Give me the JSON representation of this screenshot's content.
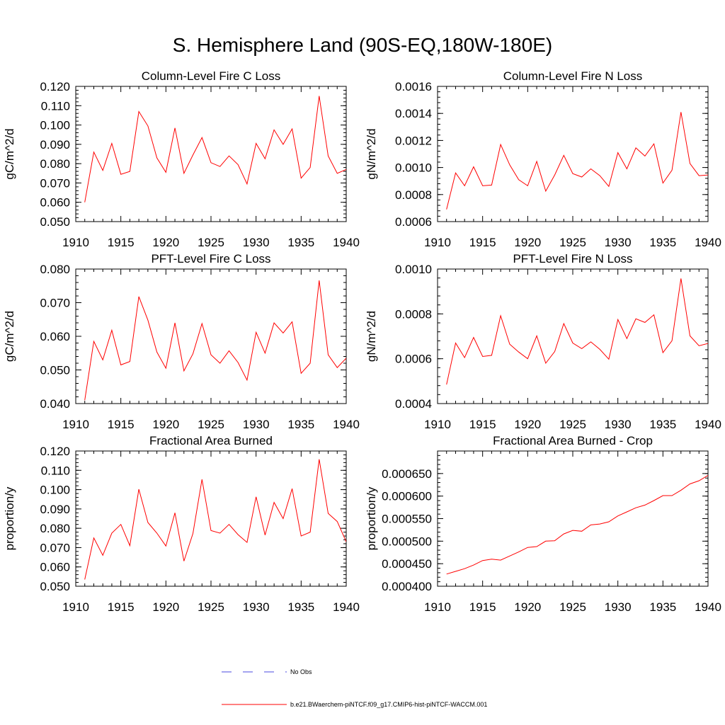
{
  "page": {
    "title": "S. Hemisphere Land (90S-EQ,180W-180E)"
  },
  "legend": {
    "obs_label": "No Obs",
    "model_label": "b.e21.BWaerchem-piNTCF.f09_g17.CMIP6-hist-piNTCF-WACCM.001",
    "obs_color": "#4a4ae0",
    "model_color": "#ff0000"
  },
  "chart_data": [
    {
      "type": "line",
      "title": "Column-Level Fire C Loss",
      "ylabel": "gC/m^2/d",
      "xlim": [
        1910,
        1940
      ],
      "ylim": [
        0.05,
        0.12
      ],
      "xticks": [
        "1910",
        "1915",
        "1920",
        "1925",
        "1930",
        "1935",
        "1940"
      ],
      "yticks": [
        "0.050",
        "0.060",
        "0.070",
        "0.080",
        "0.090",
        "0.100",
        "0.110",
        "0.120"
      ],
      "x": [
        1911,
        1912,
        1913,
        1914,
        1915,
        1916,
        1917,
        1918,
        1919,
        1920,
        1921,
        1922,
        1923,
        1924,
        1925,
        1926,
        1927,
        1928,
        1929,
        1930,
        1931,
        1932,
        1933,
        1934,
        1935,
        1936,
        1937,
        1938,
        1939,
        1940
      ],
      "values": [
        0.06,
        0.086,
        0.0765,
        0.0905,
        0.0745,
        0.076,
        0.107,
        0.0995,
        0.083,
        0.0755,
        0.0985,
        0.075,
        0.0845,
        0.0935,
        0.0805,
        0.0785,
        0.084,
        0.0795,
        0.0695,
        0.0905,
        0.0825,
        0.0975,
        0.09,
        0.098,
        0.0725,
        0.078,
        0.115,
        0.084,
        0.075,
        0.077
      ],
      "color": "#ff0000"
    },
    {
      "type": "line",
      "title": "Column-Level Fire N Loss",
      "ylabel": "gN/m^2/d",
      "xlim": [
        1910,
        1940
      ],
      "ylim": [
        0.0006,
        0.0016
      ],
      "xticks": [
        "1910",
        "1915",
        "1920",
        "1925",
        "1930",
        "1935",
        "1940"
      ],
      "yticks": [
        "0.0006",
        "0.0008",
        "0.0010",
        "0.0012",
        "0.0014",
        "0.0016"
      ],
      "x": [
        1911,
        1912,
        1913,
        1914,
        1915,
        1916,
        1917,
        1918,
        1919,
        1920,
        1921,
        1922,
        1923,
        1924,
        1925,
        1926,
        1927,
        1928,
        1929,
        1930,
        1931,
        1932,
        1933,
        1934,
        1935,
        1936,
        1937,
        1938,
        1939,
        1940
      ],
      "values": [
        0.00069,
        0.00096,
        0.000865,
        0.001005,
        0.000865,
        0.00087,
        0.00117,
        0.00102,
        0.00091,
        0.000865,
        0.001045,
        0.000825,
        0.000945,
        0.00109,
        0.000955,
        0.00093,
        0.00099,
        0.00094,
        0.00086,
        0.00111,
        0.00099,
        0.001145,
        0.001085,
        0.001175,
        0.000885,
        0.00098,
        0.00141,
        0.00103,
        0.00094,
        0.000945
      ],
      "color": "#ff0000"
    },
    {
      "type": "line",
      "title": "PFT-Level Fire C Loss",
      "ylabel": "gC/m^2/d",
      "xlim": [
        1910,
        1940
      ],
      "ylim": [
        0.04,
        0.08
      ],
      "xticks": [
        "1910",
        "1915",
        "1920",
        "1925",
        "1930",
        "1935",
        "1940"
      ],
      "yticks": [
        "0.040",
        "0.050",
        "0.060",
        "0.070",
        "0.080"
      ],
      "x": [
        1911,
        1912,
        1913,
        1914,
        1915,
        1916,
        1917,
        1918,
        1919,
        1920,
        1921,
        1922,
        1923,
        1924,
        1925,
        1926,
        1927,
        1928,
        1929,
        1930,
        1931,
        1932,
        1933,
        1934,
        1935,
        1936,
        1937,
        1938,
        1939,
        1940
      ],
      "values": [
        0.041,
        0.0585,
        0.053,
        0.0618,
        0.0515,
        0.0525,
        0.0718,
        0.0648,
        0.0553,
        0.0505,
        0.064,
        0.0497,
        0.0548,
        0.0638,
        0.0545,
        0.052,
        0.0557,
        0.0522,
        0.047,
        0.0612,
        0.055,
        0.064,
        0.061,
        0.0643,
        0.049,
        0.052,
        0.0766,
        0.0545,
        0.0507,
        0.0535
      ],
      "color": "#ff0000"
    },
    {
      "type": "line",
      "title": "PFT-Level Fire N Loss",
      "ylabel": "gN/m^2/d",
      "xlim": [
        1910,
        1940
      ],
      "ylim": [
        0.0004,
        0.001
      ],
      "xticks": [
        "1910",
        "1915",
        "1920",
        "1925",
        "1930",
        "1935",
        "1940"
      ],
      "yticks": [
        "0.0004",
        "0.0006",
        "0.0008",
        "0.0010"
      ],
      "x": [
        1911,
        1912,
        1913,
        1914,
        1915,
        1916,
        1917,
        1918,
        1919,
        1920,
        1921,
        1922,
        1923,
        1924,
        1925,
        1926,
        1927,
        1928,
        1929,
        1930,
        1931,
        1932,
        1933,
        1934,
        1935,
        1936,
        1937,
        1938,
        1939,
        1940
      ],
      "values": [
        0.000485,
        0.00067,
        0.000605,
        0.000695,
        0.00061,
        0.000615,
        0.000792,
        0.000665,
        0.00063,
        0.0006,
        0.000702,
        0.00058,
        0.000632,
        0.000757,
        0.00067,
        0.000645,
        0.000675,
        0.000642,
        0.000598,
        0.000775,
        0.00069,
        0.000778,
        0.000762,
        0.000796,
        0.000627,
        0.00068,
        0.000958,
        0.000702,
        0.000658,
        0.000668
      ],
      "color": "#ff0000"
    },
    {
      "type": "line",
      "title": "Fractional Area Burned",
      "ylabel": "proportion/y",
      "xlim": [
        1910,
        1940
      ],
      "ylim": [
        0.05,
        0.12
      ],
      "xticks": [
        "1910",
        "1915",
        "1920",
        "1925",
        "1930",
        "1935",
        "1940"
      ],
      "yticks": [
        "0.050",
        "0.060",
        "0.070",
        "0.080",
        "0.090",
        "0.100",
        "0.110",
        "0.120"
      ],
      "x": [
        1911,
        1912,
        1913,
        1914,
        1915,
        1916,
        1917,
        1918,
        1919,
        1920,
        1921,
        1922,
        1923,
        1924,
        1925,
        1926,
        1927,
        1928,
        1929,
        1930,
        1931,
        1932,
        1933,
        1934,
        1935,
        1936,
        1937,
        1938,
        1939,
        1940
      ],
      "values": [
        0.0535,
        0.075,
        0.066,
        0.0775,
        0.082,
        0.071,
        0.1002,
        0.083,
        0.0775,
        0.0708,
        0.088,
        0.063,
        0.0773,
        0.1053,
        0.0788,
        0.0775,
        0.082,
        0.0767,
        0.0727,
        0.0963,
        0.0765,
        0.0934,
        0.085,
        0.1005,
        0.076,
        0.078,
        0.1157,
        0.0877,
        0.0835,
        0.073
      ],
      "color": "#ff0000"
    },
    {
      "type": "line",
      "title": "Fractional Area Burned - Crop",
      "ylabel": "proportion/y",
      "xlim": [
        1910,
        1940
      ],
      "ylim": [
        0.0004,
        0.0007
      ],
      "xticks": [
        "1910",
        "1915",
        "1920",
        "1925",
        "1930",
        "1935",
        "1940"
      ],
      "yticks": [
        "0.000400",
        "0.000450",
        "0.000500",
        "0.000550",
        "0.000600",
        "0.000650"
      ],
      "x": [
        1911,
        1912,
        1913,
        1914,
        1915,
        1916,
        1917,
        1918,
        1919,
        1920,
        1921,
        1922,
        1923,
        1924,
        1925,
        1926,
        1927,
        1928,
        1929,
        1930,
        1931,
        1932,
        1933,
        1934,
        1935,
        1936,
        1937,
        1938,
        1939,
        1940
      ],
      "values": [
        0.000427,
        0.000433,
        0.000439,
        0.000447,
        0.000457,
        0.00046,
        0.000458,
        0.000467,
        0.000476,
        0.000486,
        0.000488,
        0.0005,
        0.000501,
        0.000516,
        0.000524,
        0.000522,
        0.000536,
        0.000538,
        0.000543,
        0.000556,
        0.000565,
        0.000574,
        0.00058,
        0.00059,
        0.000601,
        0.000601,
        0.000613,
        0.000627,
        0.000634,
        0.000646
      ],
      "color": "#ff0000"
    }
  ]
}
